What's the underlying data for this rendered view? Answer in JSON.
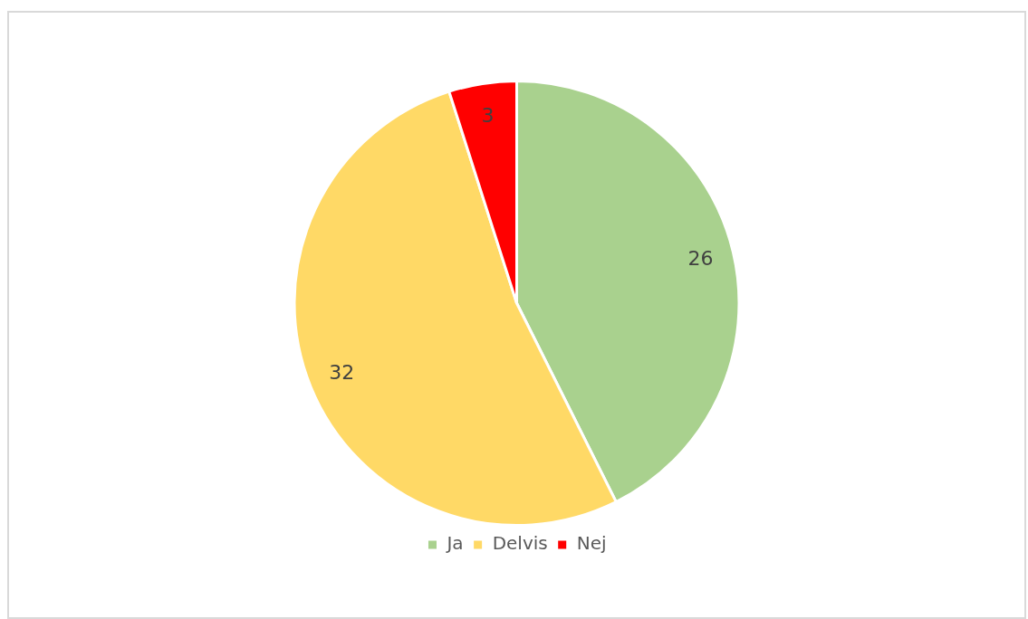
{
  "chart_data": {
    "type": "pie",
    "categories": [
      "Ja",
      "Delvis",
      "Nej"
    ],
    "values": [
      26,
      32,
      3
    ],
    "colors": [
      "#a9d18e",
      "#ffd966",
      "#ff0000"
    ],
    "data_labels": true,
    "legend": "bottom"
  }
}
